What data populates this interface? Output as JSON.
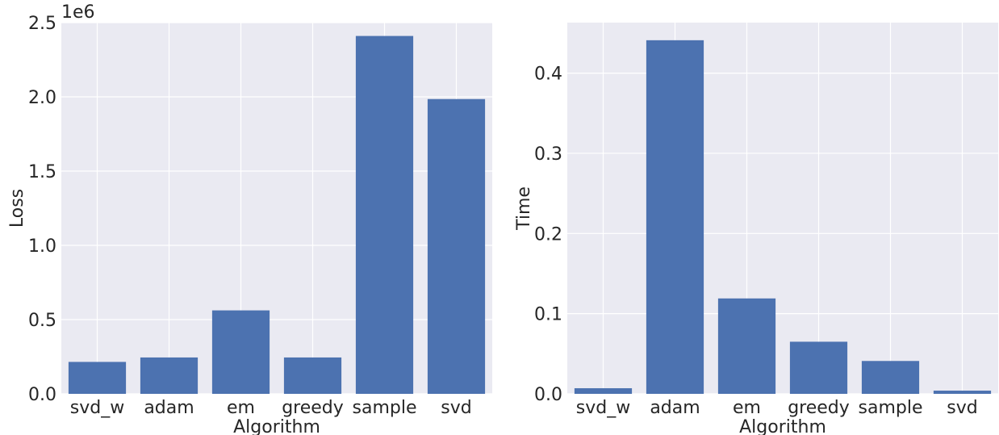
{
  "chart_data": [
    {
      "type": "bar",
      "categories": [
        "svd_w",
        "adam",
        "em",
        "greedy",
        "sample",
        "svd"
      ],
      "values": [
        215000,
        245000,
        562000,
        245000,
        2410000,
        1985000
      ],
      "xlabel": "Algorithm",
      "ylabel": "Loss",
      "ylim": [
        0,
        2500000
      ],
      "yticks": [
        0,
        500000,
        1000000,
        1500000,
        2000000,
        2500000
      ],
      "ytick_labels": [
        "0.0",
        "0.5",
        "1.0",
        "1.5",
        "2.0",
        "2.5"
      ],
      "offset_label": "1e6",
      "grid": true,
      "bar_color": "#4c72b0",
      "background_color": "#eaeaf2"
    },
    {
      "type": "bar",
      "categories": [
        "svd_w",
        "adam",
        "em",
        "greedy",
        "sample",
        "svd"
      ],
      "values": [
        0.007,
        0.441,
        0.119,
        0.065,
        0.041,
        0.004
      ],
      "xlabel": "Algorithm",
      "ylabel": "Time",
      "ylim": [
        0,
        0.463
      ],
      "yticks": [
        0,
        0.1,
        0.2,
        0.3,
        0.4
      ],
      "ytick_labels": [
        "0.0",
        "0.1",
        "0.2",
        "0.3",
        "0.4"
      ],
      "grid": true,
      "bar_color": "#4c72b0",
      "background_color": "#eaeaf2"
    }
  ]
}
